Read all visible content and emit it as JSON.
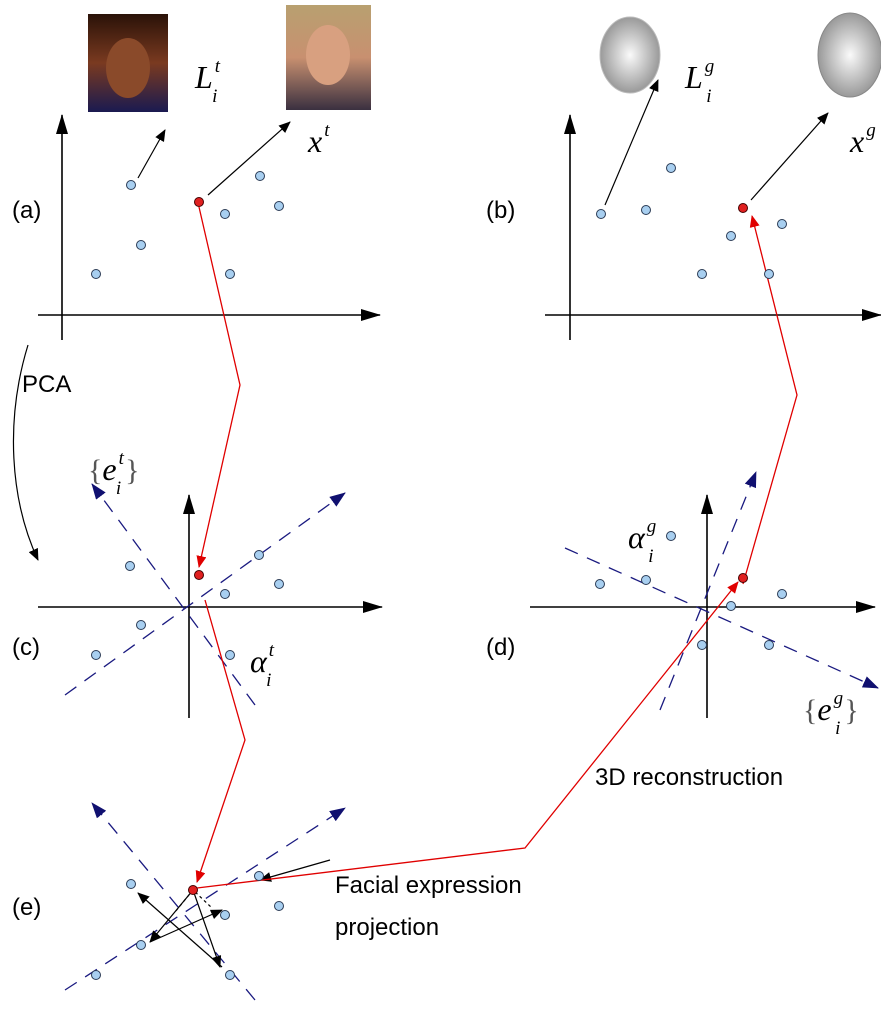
{
  "panels": [
    "(a)",
    "(b)",
    "(c)",
    "(d)",
    "(e)"
  ],
  "annotations": {
    "pca": "PCA",
    "reconstruction": "3D reconstruction",
    "projection": [
      "Facial expression",
      "projection"
    ]
  },
  "math": [
    {
      "base": "L",
      "sub": "i",
      "sup": "t"
    },
    {
      "base": "x",
      "sup": "t"
    },
    {
      "base": "L",
      "sub": "i",
      "sup": "g"
    },
    {
      "base": "x",
      "sup": "g"
    },
    {
      "left": "{",
      "base": "e",
      "sub": "i",
      "sup": "t",
      "right": "}"
    },
    {
      "base": "α",
      "sub": "i",
      "sup": "t"
    },
    {
      "base": "α",
      "sub": "i",
      "sup": "g"
    },
    {
      "left": "{",
      "base": "e",
      "sub": "i",
      "sup": "g",
      "right": "}"
    }
  ]
}
